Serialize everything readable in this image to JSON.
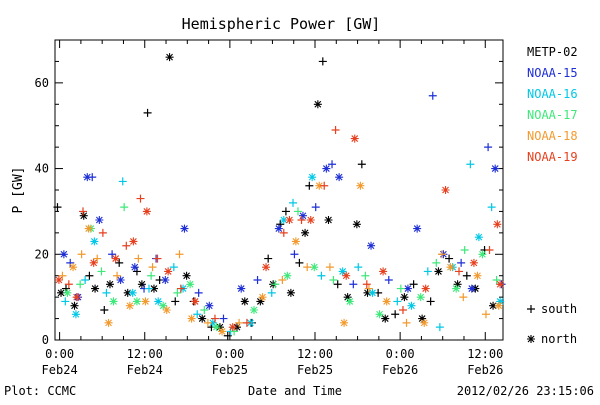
{
  "chart_data": {
    "type": "scatter",
    "title": "Hemispheric Power [GW]",
    "ylabel": "P [GW]",
    "xlabel": "Date and Time",
    "x_unit": "hours since 2012/02/24 00:00 UT",
    "ylim": [
      0,
      70
    ],
    "xlim": [
      -0.65,
      62.5
    ],
    "yticks": [
      {
        "v": 0,
        "label": "0"
      },
      {
        "v": 20,
        "label": "20"
      },
      {
        "v": 40,
        "label": "40"
      },
      {
        "v": 60,
        "label": "60"
      }
    ],
    "xticks": [
      {
        "v": 0,
        "label": "0:00",
        "sub": "Feb24"
      },
      {
        "v": 12,
        "label": "12:00",
        "sub": "Feb24"
      },
      {
        "v": 24,
        "label": "0:00",
        "sub": "Feb25"
      },
      {
        "v": 36,
        "label": "12:00",
        "sub": "Feb25"
      },
      {
        "v": 48,
        "label": "0:00",
        "sub": "Feb26"
      },
      {
        "v": 60,
        "label": "12:00",
        "sub": "Feb26"
      }
    ],
    "legend_position": "right",
    "marker_legend": [
      {
        "symbol": "+",
        "label": "south"
      },
      {
        "symbol": "*",
        "label": "north"
      }
    ],
    "series": [
      {
        "name": "METP-02",
        "color": "#000000",
        "points": [
          [
            -0.3,
            31,
            "+"
          ],
          [
            0.2,
            11,
            "*"
          ],
          [
            0.9,
            12,
            "+"
          ],
          [
            2.1,
            8,
            "*"
          ],
          [
            3.4,
            29,
            "*"
          ],
          [
            4.2,
            15,
            "+"
          ],
          [
            5.0,
            12,
            "*"
          ],
          [
            6.3,
            7,
            "+"
          ],
          [
            7.1,
            13,
            "*"
          ],
          [
            8.4,
            18,
            "+"
          ],
          [
            9.6,
            11,
            "*"
          ],
          [
            10.9,
            16,
            "+"
          ],
          [
            11.6,
            13,
            "*"
          ],
          [
            12.4,
            53,
            "+"
          ],
          [
            13.3,
            12,
            "*"
          ],
          [
            14.1,
            14,
            "+"
          ],
          [
            15.5,
            66,
            "*"
          ],
          [
            16.3,
            9,
            "+"
          ],
          [
            17.9,
            15,
            "*"
          ],
          [
            18.9,
            9,
            "+"
          ],
          [
            20.1,
            5,
            "*"
          ],
          [
            21.4,
            3,
            "+"
          ],
          [
            22.6,
            3,
            "*"
          ],
          [
            23.7,
            1,
            "+"
          ],
          [
            25.0,
            3,
            "*"
          ],
          [
            26.1,
            9,
            "*"
          ],
          [
            27.1,
            4,
            "+"
          ],
          [
            28.3,
            9,
            "*"
          ],
          [
            29.4,
            19,
            "+"
          ],
          [
            30.1,
            13,
            "*"
          ],
          [
            31.1,
            27,
            "+"
          ],
          [
            31.9,
            30,
            "+"
          ],
          [
            32.6,
            11,
            "*"
          ],
          [
            33.8,
            18,
            "+"
          ],
          [
            34.6,
            25,
            "*"
          ],
          [
            35.2,
            36,
            "+"
          ],
          [
            36.4,
            55,
            "*"
          ],
          [
            37.1,
            65,
            "+"
          ],
          [
            37.9,
            28,
            "*"
          ],
          [
            39.2,
            13,
            "+"
          ],
          [
            40.6,
            10,
            "*"
          ],
          [
            41.9,
            27,
            "*"
          ],
          [
            42.6,
            41,
            "+"
          ],
          [
            43.4,
            11,
            "*"
          ],
          [
            44.9,
            11,
            "+"
          ],
          [
            45.9,
            5,
            "*"
          ],
          [
            47.3,
            6,
            "+"
          ],
          [
            48.6,
            10,
            "*"
          ],
          [
            49.9,
            13,
            "+"
          ],
          [
            51.1,
            5,
            "*"
          ],
          [
            52.3,
            9,
            "+"
          ],
          [
            53.4,
            16,
            "*"
          ],
          [
            54.9,
            19,
            "+"
          ],
          [
            56.1,
            13,
            "*"
          ],
          [
            57.4,
            15,
            "+"
          ],
          [
            58.6,
            12,
            "*"
          ],
          [
            59.9,
            21,
            "+"
          ],
          [
            61.1,
            8,
            "*"
          ]
        ]
      },
      {
        "name": "NOAA-15",
        "color": "#1e2fd6",
        "points": [
          [
            0.6,
            20,
            "*"
          ],
          [
            1.5,
            18,
            "+"
          ],
          [
            2.6,
            10,
            "*"
          ],
          [
            3.9,
            38,
            "*"
          ],
          [
            4.6,
            38,
            "+"
          ],
          [
            5.6,
            28,
            "*"
          ],
          [
            7.4,
            20,
            "+"
          ],
          [
            8.6,
            14,
            "*"
          ],
          [
            10.6,
            17,
            "*"
          ],
          [
            11.9,
            12,
            "+"
          ],
          [
            13.6,
            19,
            "+"
          ],
          [
            14.9,
            14,
            "*"
          ],
          [
            17.6,
            26,
            "*"
          ],
          [
            19.6,
            11,
            "+"
          ],
          [
            21.1,
            8,
            "*"
          ],
          [
            23.1,
            5,
            "+"
          ],
          [
            25.6,
            12,
            "*"
          ],
          [
            27.9,
            14,
            "+"
          ],
          [
            30.9,
            26,
            "*"
          ],
          [
            33.1,
            20,
            "+"
          ],
          [
            34.3,
            29,
            "*"
          ],
          [
            36.1,
            31,
            "+"
          ],
          [
            37.6,
            40,
            "*"
          ],
          [
            38.4,
            41,
            "+"
          ],
          [
            39.4,
            38,
            "*"
          ],
          [
            41.4,
            13,
            "+"
          ],
          [
            43.9,
            22,
            "*"
          ],
          [
            46.4,
            14,
            "+"
          ],
          [
            49.1,
            12,
            "*"
          ],
          [
            50.4,
            26,
            "*"
          ],
          [
            52.6,
            57,
            "+"
          ],
          [
            54.1,
            20,
            "*"
          ],
          [
            56.6,
            18,
            "+"
          ],
          [
            58.1,
            12,
            "*"
          ],
          [
            60.4,
            45,
            "+"
          ],
          [
            61.4,
            40,
            "*"
          ],
          [
            62.3,
            13,
            "+"
          ]
        ]
      },
      {
        "name": "NOAA-16",
        "color": "#00c8e6",
        "points": [
          [
            0.8,
            9,
            "+"
          ],
          [
            2.3,
            6,
            "*"
          ],
          [
            3.6,
            14,
            "+"
          ],
          [
            4.9,
            23,
            "*"
          ],
          [
            6.6,
            11,
            "+"
          ],
          [
            8.9,
            37,
            "+"
          ],
          [
            10.3,
            11,
            "*"
          ],
          [
            12.6,
            12,
            "+"
          ],
          [
            13.9,
            9,
            "*"
          ],
          [
            16.1,
            17,
            "+"
          ],
          [
            17.4,
            12,
            "*"
          ],
          [
            19.4,
            6,
            "+"
          ],
          [
            21.6,
            4,
            "*"
          ],
          [
            24.1,
            2,
            "+"
          ],
          [
            26.9,
            4,
            "*"
          ],
          [
            29.9,
            11,
            "+"
          ],
          [
            31.6,
            28,
            "*"
          ],
          [
            32.9,
            32,
            "+"
          ],
          [
            35.6,
            38,
            "*"
          ],
          [
            36.9,
            15,
            "+"
          ],
          [
            39.9,
            16,
            "*"
          ],
          [
            42.1,
            17,
            "+"
          ],
          [
            44.1,
            11,
            "*"
          ],
          [
            47.6,
            9,
            "+"
          ],
          [
            49.6,
            8,
            "*"
          ],
          [
            51.9,
            16,
            "+"
          ],
          [
            53.6,
            3,
            "+"
          ],
          [
            55.4,
            17,
            "*"
          ],
          [
            57.9,
            41,
            "+"
          ],
          [
            59.1,
            24,
            "*"
          ],
          [
            60.9,
            31,
            "+"
          ],
          [
            62.1,
            9,
            "*"
          ]
        ]
      },
      {
        "name": "NOAA-17",
        "color": "#3ee87a",
        "points": [
          [
            1.1,
            11,
            "*"
          ],
          [
            2.9,
            13,
            "+"
          ],
          [
            4.4,
            26,
            "*"
          ],
          [
            5.9,
            16,
            "+"
          ],
          [
            7.6,
            9,
            "*"
          ],
          [
            9.1,
            31,
            "+"
          ],
          [
            10.9,
            9,
            "*"
          ],
          [
            12.9,
            15,
            "+"
          ],
          [
            14.6,
            8,
            "*"
          ],
          [
            16.6,
            11,
            "+"
          ],
          [
            18.4,
            13,
            "*"
          ],
          [
            20.4,
            7,
            "+"
          ],
          [
            22.1,
            3,
            "*"
          ],
          [
            24.6,
            2,
            "+"
          ],
          [
            27.4,
            7,
            "*"
          ],
          [
            30.4,
            13,
            "+"
          ],
          [
            32.1,
            15,
            "*"
          ],
          [
            33.6,
            30,
            "+"
          ],
          [
            35.9,
            17,
            "*"
          ],
          [
            38.6,
            14,
            "+"
          ],
          [
            40.9,
            9,
            "*"
          ],
          [
            43.1,
            15,
            "+"
          ],
          [
            45.1,
            6,
            "*"
          ],
          [
            48.1,
            12,
            "+"
          ],
          [
            50.9,
            10,
            "*"
          ],
          [
            53.1,
            18,
            "+"
          ],
          [
            55.9,
            12,
            "*"
          ],
          [
            57.1,
            21,
            "+"
          ],
          [
            59.6,
            20,
            "*"
          ],
          [
            61.6,
            14,
            "+"
          ]
        ]
      },
      {
        "name": "NOAA-18",
        "color": "#f39a2e",
        "points": [
          [
            0.4,
            15,
            "+"
          ],
          [
            1.9,
            17,
            "*"
          ],
          [
            3.1,
            20,
            "+"
          ],
          [
            4.1,
            26,
            "*"
          ],
          [
            5.3,
            19,
            "+"
          ],
          [
            6.9,
            4,
            "*"
          ],
          [
            8.1,
            15,
            "+"
          ],
          [
            9.9,
            8,
            "*"
          ],
          [
            11.1,
            19,
            "+"
          ],
          [
            12.1,
            9,
            "*"
          ],
          [
            13.1,
            17,
            "+"
          ],
          [
            15.1,
            7,
            "*"
          ],
          [
            16.9,
            20,
            "+"
          ],
          [
            18.6,
            5,
            "*"
          ],
          [
            20.9,
            4,
            "+"
          ],
          [
            22.9,
            2,
            "*"
          ],
          [
            25.3,
            4,
            "+"
          ],
          [
            28.6,
            10,
            "*"
          ],
          [
            31.4,
            14,
            "+"
          ],
          [
            33.3,
            23,
            "*"
          ],
          [
            34.9,
            17,
            "+"
          ],
          [
            36.6,
            36,
            "*"
          ],
          [
            38.1,
            17,
            "+"
          ],
          [
            40.1,
            4,
            "*"
          ],
          [
            42.4,
            36,
            "*"
          ],
          [
            43.6,
            12,
            "+"
          ],
          [
            46.1,
            9,
            "*"
          ],
          [
            48.9,
            4,
            "+"
          ],
          [
            51.4,
            4,
            "*"
          ],
          [
            53.9,
            20,
            "+"
          ],
          [
            55.1,
            17,
            "*"
          ],
          [
            56.9,
            10,
            "+"
          ],
          [
            58.9,
            15,
            "*"
          ],
          [
            60.1,
            6,
            "+"
          ],
          [
            61.9,
            8,
            "*"
          ]
        ]
      },
      {
        "name": "NOAA-19",
        "color": "#e6401e",
        "points": [
          [
            -0.1,
            14,
            "*"
          ],
          [
            1.3,
            13,
            "+"
          ],
          [
            2.4,
            10,
            "*"
          ],
          [
            3.3,
            30,
            "+"
          ],
          [
            4.8,
            18,
            "*"
          ],
          [
            6.1,
            25,
            "+"
          ],
          [
            7.9,
            19,
            "*"
          ],
          [
            9.4,
            22,
            "+"
          ],
          [
            10.4,
            23,
            "*"
          ],
          [
            11.4,
            33,
            "+"
          ],
          [
            12.3,
            30,
            "*"
          ],
          [
            13.8,
            19,
            "+"
          ],
          [
            15.3,
            16,
            "*"
          ],
          [
            17.1,
            12,
            "+"
          ],
          [
            19.1,
            9,
            "*"
          ],
          [
            21.9,
            5,
            "+"
          ],
          [
            24.4,
            3,
            "*"
          ],
          [
            26.4,
            4,
            "+"
          ],
          [
            29.1,
            17,
            "*"
          ],
          [
            31.6,
            25,
            "+"
          ],
          [
            32.4,
            28,
            "*"
          ],
          [
            34.1,
            28,
            "+"
          ],
          [
            35.4,
            28,
            "*"
          ],
          [
            37.3,
            36,
            "+"
          ],
          [
            38.9,
            49,
            "+"
          ],
          [
            40.4,
            15,
            "*"
          ],
          [
            41.6,
            47,
            "*"
          ],
          [
            43.3,
            13,
            "+"
          ],
          [
            45.6,
            16,
            "*"
          ],
          [
            48.4,
            7,
            "+"
          ],
          [
            51.6,
            12,
            "*"
          ],
          [
            54.4,
            35,
            "*"
          ],
          [
            56.3,
            16,
            "+"
          ],
          [
            58.4,
            18,
            "*"
          ],
          [
            60.6,
            21,
            "+"
          ],
          [
            61.7,
            27,
            "*"
          ],
          [
            62.1,
            13,
            "*"
          ]
        ]
      }
    ]
  },
  "footer": {
    "plot_credit": "Plot: CCMC",
    "timestamp": "2012/02/26 23:15:06"
  }
}
